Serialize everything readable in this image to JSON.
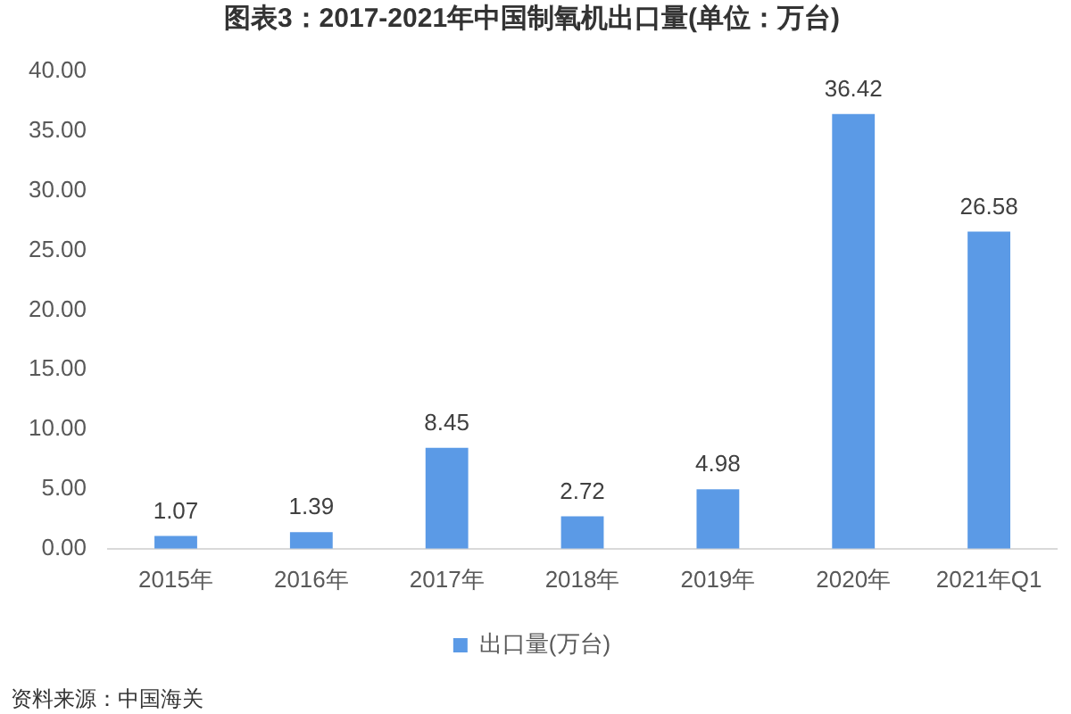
{
  "chart_data": {
    "type": "bar",
    "title": "图表3：2017-2021年中国制氧机出口量(单位：万台)",
    "categories": [
      "2015年",
      "2016年",
      "2017年",
      "2018年",
      "2019年",
      "2020年",
      "2021年Q1"
    ],
    "series": [
      {
        "name": "出口量(万台)",
        "color": "#5b9ae6",
        "values": [
          1.07,
          1.39,
          8.45,
          2.72,
          4.98,
          36.42,
          26.58
        ]
      }
    ],
    "ylim": [
      0,
      40
    ],
    "yticks": [
      {
        "value": 0,
        "label": "0.00"
      },
      {
        "value": 5,
        "label": "5.00"
      },
      {
        "value": 10,
        "label": "10.00"
      },
      {
        "value": 15,
        "label": "15.00"
      },
      {
        "value": 20,
        "label": "20.00"
      },
      {
        "value": 25,
        "label": "25.00"
      },
      {
        "value": 30,
        "label": "30.00"
      },
      {
        "value": 35,
        "label": "35.00"
      },
      {
        "value": 40,
        "label": "40.00"
      }
    ],
    "grid": false,
    "legend": "bottom",
    "data_labels": true,
    "annotations": [
      "资料来源：中国海关"
    ]
  }
}
